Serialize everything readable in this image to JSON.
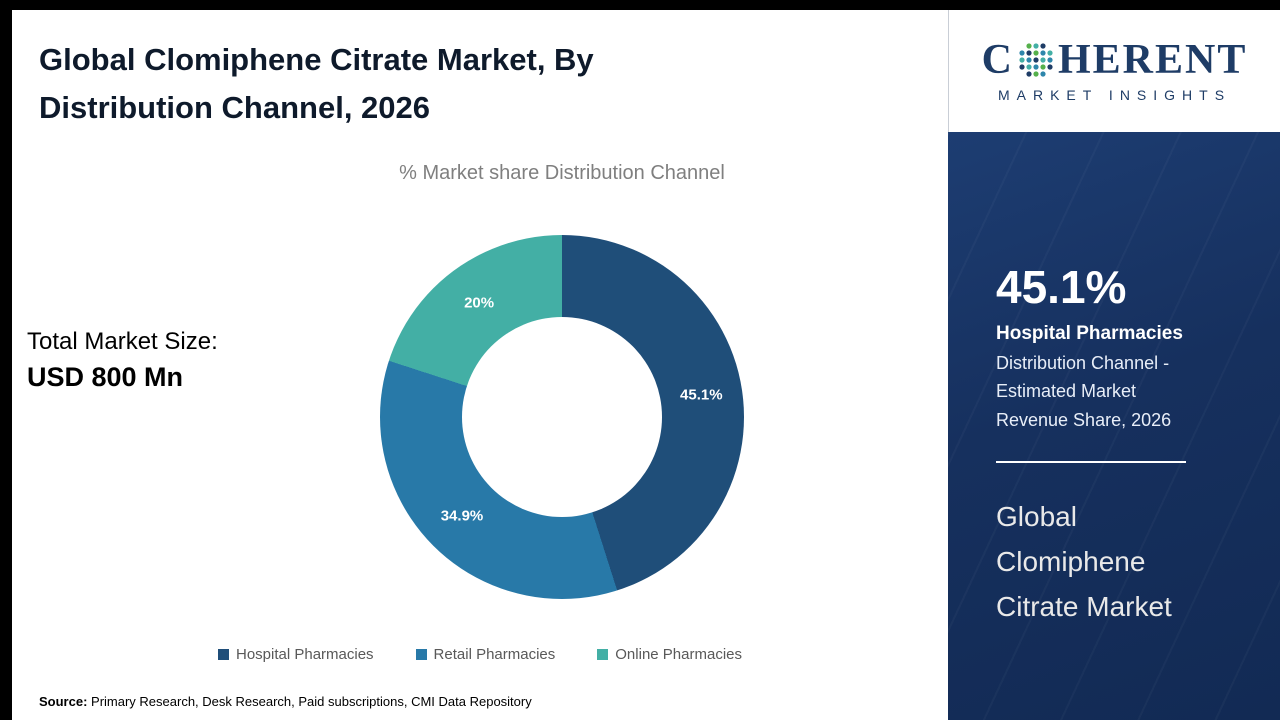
{
  "header": {
    "title": "Global Clomiphene Citrate Market, By\nDistribution Channel, 2026"
  },
  "chart_data": {
    "type": "pie",
    "donut": true,
    "title": "% Market share Distribution Channel",
    "categories": [
      "Hospital Pharmacies",
      "Retail Pharmacies",
      "Online Pharmacies"
    ],
    "values": [
      45.1,
      34.9,
      20
    ],
    "labels": [
      "45.1%",
      "34.9%",
      "20%"
    ],
    "colors": [
      "#1f4e79",
      "#2879a8",
      "#43afa5"
    ],
    "legend_position": "bottom",
    "hole_ratio": 0.55,
    "start_angle_deg": 0,
    "direction": "clockwise"
  },
  "market_size": {
    "label": "Total Market Size:",
    "value": "USD 800 Mn"
  },
  "sidebar": {
    "logo": {
      "brand_prefix": "C",
      "brand_suffix": "HERENT",
      "subtitle": "MARKET INSIGHTS"
    },
    "stat_value": "45.1%",
    "stat_title": "Hospital Pharmacies",
    "stat_description": "Distribution Channel -\nEstimated Market\nRevenue Share, 2026",
    "market_name": "Global\nClomiphene\nCitrate Market"
  },
  "source": {
    "label": "Source:",
    "text": " Primary Research, Desk Research, Paid subscriptions, CMI Data Repository"
  }
}
